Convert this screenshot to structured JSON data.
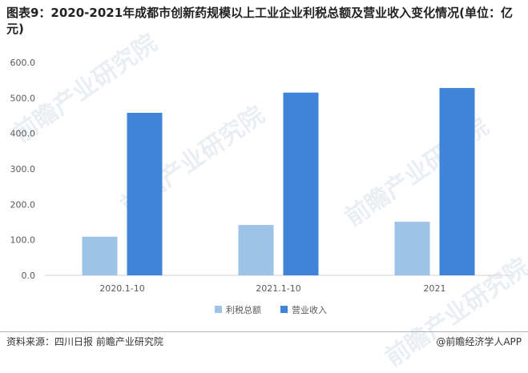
{
  "header": {
    "title": "图表9：2020-2021年成都市创新药规模以上工业企业利税总额及营业收入变化情况(单位：亿元)"
  },
  "chart_data": {
    "type": "bar",
    "categories": [
      "2020.1-10",
      "2021.1-10",
      "2021"
    ],
    "series": [
      {
        "name": "利税总额",
        "values": [
          109,
          142,
          151
        ],
        "color": "#9dc3e6"
      },
      {
        "name": "营业收入",
        "values": [
          458,
          515,
          528
        ],
        "color": "#3f84d9"
      }
    ],
    "ylim": [
      0,
      600
    ],
    "yticks": [
      "0.0",
      "100.0",
      "200.0",
      "300.0",
      "400.0",
      "500.0",
      "600.0"
    ],
    "grid": false,
    "legend": "bottom"
  },
  "watermark": {
    "text": "前瞻产业研究院"
  },
  "footer": {
    "source": "资料来源：四川日报 前瞻产业研究院",
    "brand": "@前瞻经济学人APP"
  }
}
